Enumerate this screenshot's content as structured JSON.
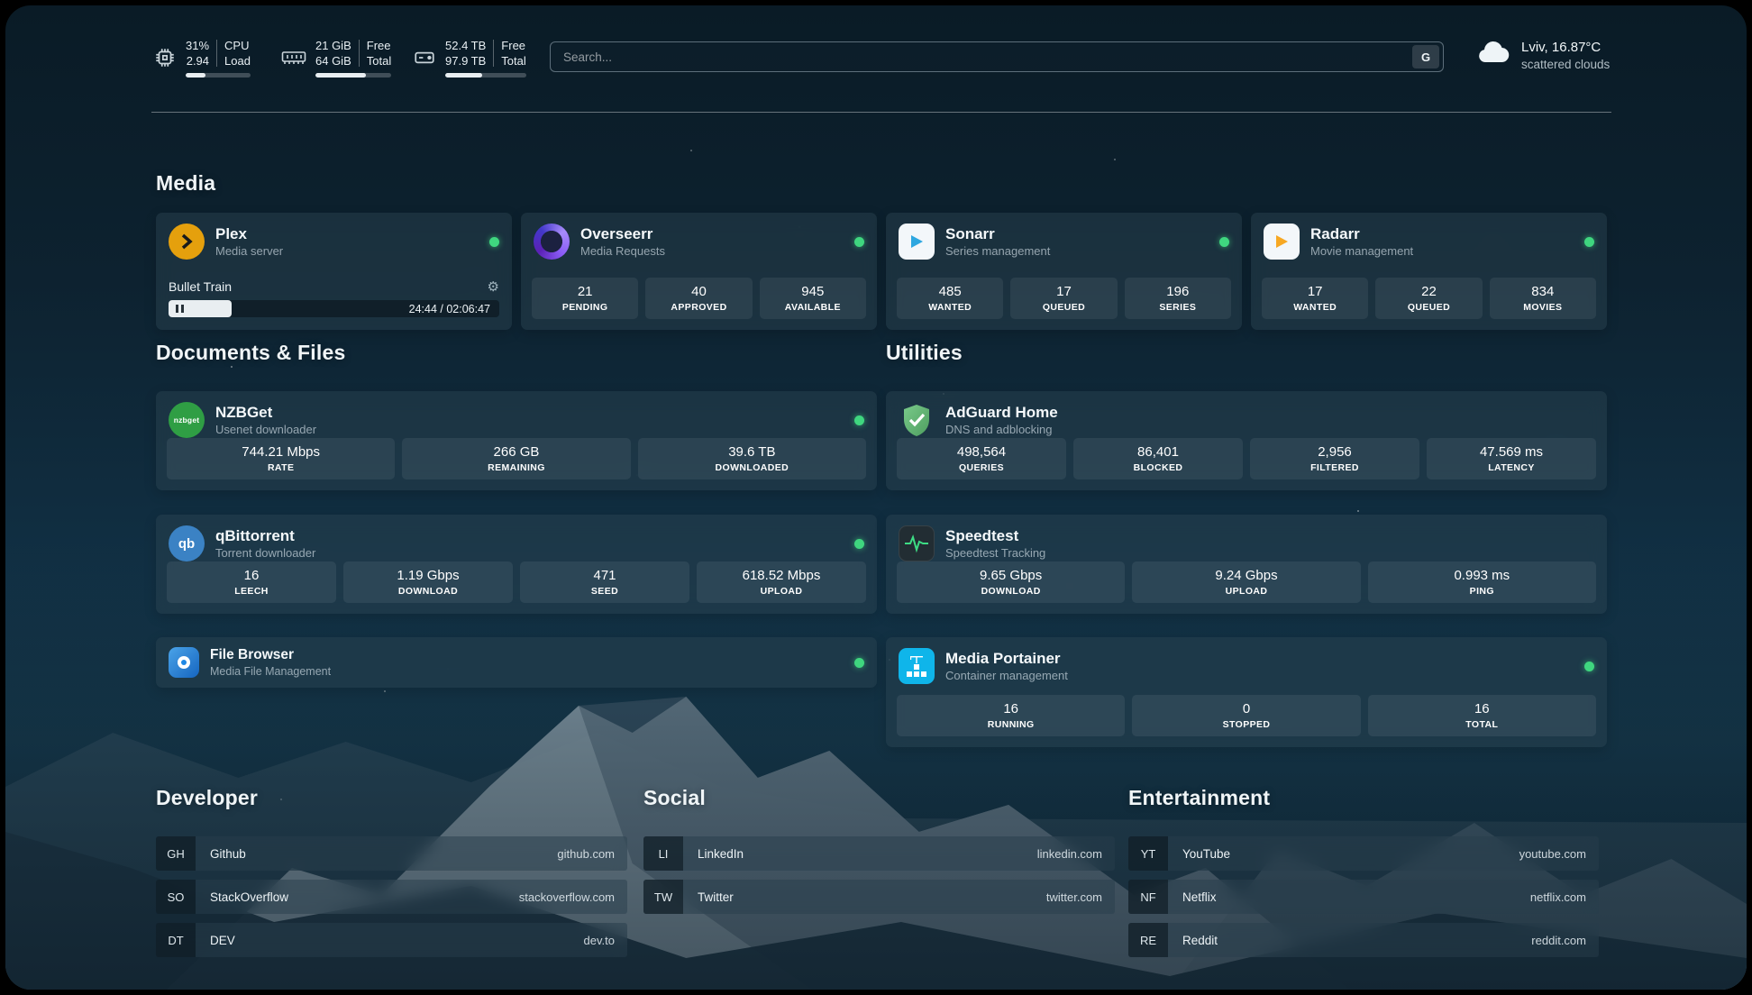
{
  "topbar": {
    "cpu": {
      "value_top": "31%",
      "value_bottom": "2.94",
      "label_top": "CPU",
      "label_bottom": "Load",
      "progress": 31
    },
    "memory": {
      "value_top": "21 GiB",
      "value_bottom": "64 GiB",
      "label_top": "Free",
      "label_bottom": "Total",
      "progress": 67
    },
    "disk": {
      "value_top": "52.4 TB",
      "value_bottom": "97.9 TB",
      "label_top": "Free",
      "label_bottom": "Total",
      "progress": 46
    },
    "search": {
      "placeholder": "Search...",
      "provider_button": "G"
    },
    "weather": {
      "location": "Lviv, 16.87°C",
      "condition": "scattered clouds"
    }
  },
  "section_titles": {
    "media": "Media",
    "documents": "Documents & Files",
    "utilities": "Utilities",
    "developer": "Developer",
    "social": "Social",
    "entertainment": "Entertainment"
  },
  "services": {
    "plex": {
      "name": "Plex",
      "subtitle": "Media server",
      "now_playing": "Bullet Train",
      "time": "24:44 / 02:06:47",
      "progress": 19
    },
    "overseerr": {
      "name": "Overseerr",
      "subtitle": "Media Requests",
      "stats": [
        {
          "value": "21",
          "label": "PENDING"
        },
        {
          "value": "40",
          "label": "APPROVED"
        },
        {
          "value": "945",
          "label": "AVAILABLE"
        }
      ]
    },
    "sonarr": {
      "name": "Sonarr",
      "subtitle": "Series management",
      "stats": [
        {
          "value": "485",
          "label": "WANTED"
        },
        {
          "value": "17",
          "label": "QUEUED"
        },
        {
          "value": "196",
          "label": "SERIES"
        }
      ]
    },
    "radarr": {
      "name": "Radarr",
      "subtitle": "Movie management",
      "stats": [
        {
          "value": "17",
          "label": "WANTED"
        },
        {
          "value": "22",
          "label": "QUEUED"
        },
        {
          "value": "834",
          "label": "MOVIES"
        }
      ]
    },
    "nzbget": {
      "name": "NZBGet",
      "subtitle": "Usenet downloader",
      "icon_text": "nzbget",
      "stats": [
        {
          "value": "744.21 Mbps",
          "label": "RATE"
        },
        {
          "value": "266 GB",
          "label": "REMAINING"
        },
        {
          "value": "39.6 TB",
          "label": "DOWNLOADED"
        }
      ]
    },
    "qbittorrent": {
      "name": "qBittorrent",
      "subtitle": "Torrent downloader",
      "icon_text": "qb",
      "stats": [
        {
          "value": "16",
          "label": "LEECH"
        },
        {
          "value": "1.19 Gbps",
          "label": "DOWNLOAD"
        },
        {
          "value": "471",
          "label": "SEED"
        },
        {
          "value": "618.52 Mbps",
          "label": "UPLOAD"
        }
      ]
    },
    "filebrowser": {
      "name": "File Browser",
      "subtitle": "Media File Management"
    },
    "adguard": {
      "name": "AdGuard Home",
      "subtitle": "DNS and adblocking",
      "stats": [
        {
          "value": "498,564",
          "label": "QUERIES"
        },
        {
          "value": "86,401",
          "label": "BLOCKED"
        },
        {
          "value": "2,956",
          "label": "FILTERED"
        },
        {
          "value": "47.569 ms",
          "label": "LATENCY"
        }
      ]
    },
    "speedtest": {
      "name": "Speedtest",
      "subtitle": "Speedtest Tracking",
      "stats": [
        {
          "value": "9.65 Gbps",
          "label": "DOWNLOAD"
        },
        {
          "value": "9.24 Gbps",
          "label": "UPLOAD"
        },
        {
          "value": "0.993 ms",
          "label": "PING"
        }
      ]
    },
    "portainer": {
      "name": "Media Portainer",
      "subtitle": "Container management",
      "stats": [
        {
          "value": "16",
          "label": "RUNNING"
        },
        {
          "value": "0",
          "label": "STOPPED"
        },
        {
          "value": "16",
          "label": "TOTAL"
        }
      ]
    }
  },
  "bookmarks": {
    "developer": [
      {
        "abbr": "GH",
        "name": "Github",
        "url": "github.com"
      },
      {
        "abbr": "SO",
        "name": "StackOverflow",
        "url": "stackoverflow.com"
      },
      {
        "abbr": "DT",
        "name": "DEV",
        "url": "dev.to"
      }
    ],
    "social": [
      {
        "abbr": "LI",
        "name": "LinkedIn",
        "url": "linkedin.com"
      },
      {
        "abbr": "TW",
        "name": "Twitter",
        "url": "twitter.com"
      }
    ],
    "entertainment": [
      {
        "abbr": "YT",
        "name": "YouTube",
        "url": "youtube.com"
      },
      {
        "abbr": "NF",
        "name": "Netflix",
        "url": "netflix.com"
      },
      {
        "abbr": "RE",
        "name": "Reddit",
        "url": "reddit.com"
      }
    ]
  },
  "colors": {
    "status_online": "#3fd67f",
    "plex_accent": "#e5a00d"
  }
}
